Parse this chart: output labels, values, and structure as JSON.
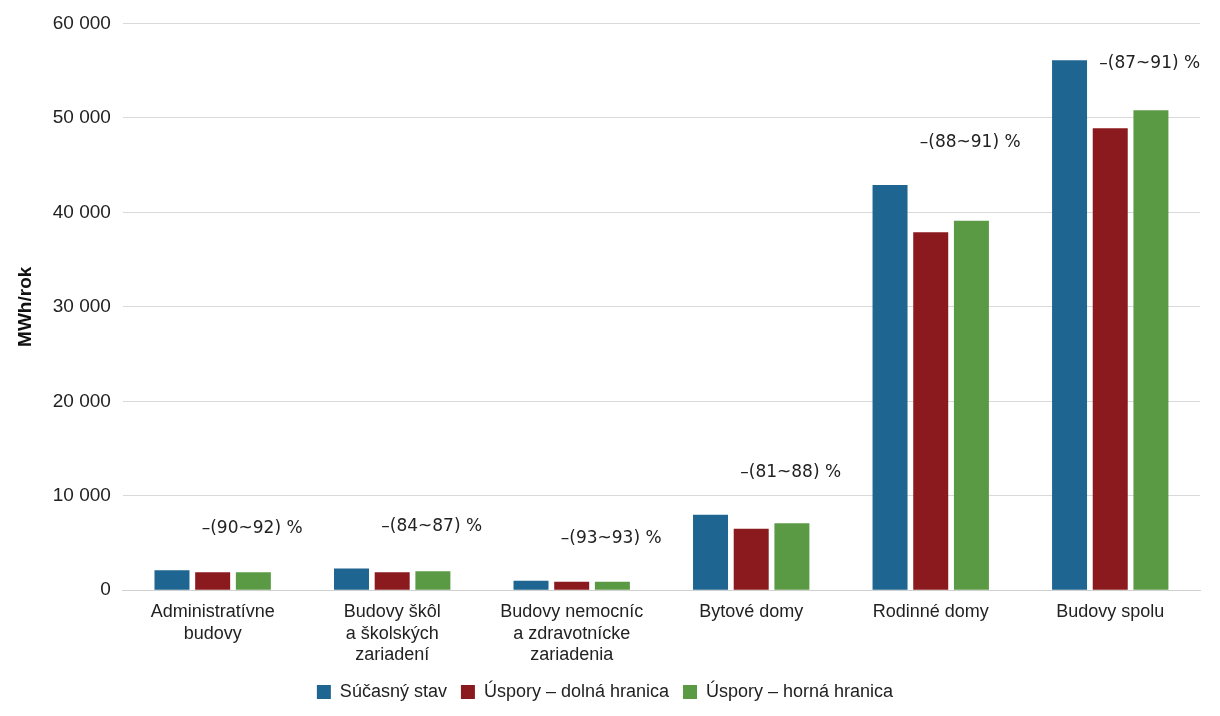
{
  "chart_data": {
    "type": "bar",
    "ylabel": "MWh/rok",
    "categories": [
      "Administratívne budovy",
      "Budovy škôl a školských zariadení",
      "Budovy nemocníc a zdravotnícke zariadenia",
      "Bytové domy",
      "Rodinné domy",
      "Budovy spolu"
    ],
    "series": [
      {
        "name": "Súčasný stav",
        "color": "#1f6591",
        "values": [
          2100,
          2300,
          1000,
          8000,
          42900,
          56100
        ]
      },
      {
        "name": "Úspory – dolná hranica",
        "color": "#8b1a1e",
        "values": [
          1900,
          1900,
          900,
          6500,
          37900,
          48900
        ]
      },
      {
        "name": "Úspory – horná hranica",
        "color": "#5b9a45",
        "values": [
          1900,
          2000,
          900,
          7100,
          39100,
          50800
        ]
      }
    ],
    "ylim": [
      0,
      60000
    ],
    "yticks": [
      {
        "value": 0,
        "label": "0"
      },
      {
        "value": 10000,
        "label": "10 000"
      },
      {
        "value": 20000,
        "label": "20 000"
      },
      {
        "value": 30000,
        "label": "30 000"
      },
      {
        "value": 40000,
        "label": "40 000"
      },
      {
        "value": 50000,
        "label": "50 000"
      },
      {
        "value": 60000,
        "label": "60 000"
      }
    ],
    "grid": "y",
    "legend": "bottom",
    "annotations": [
      "–(90~92) %",
      "–(84~87) %",
      "–(93~93) %",
      "–(81~88) %",
      "–(88~91) %",
      "–(87~91) %"
    ]
  }
}
